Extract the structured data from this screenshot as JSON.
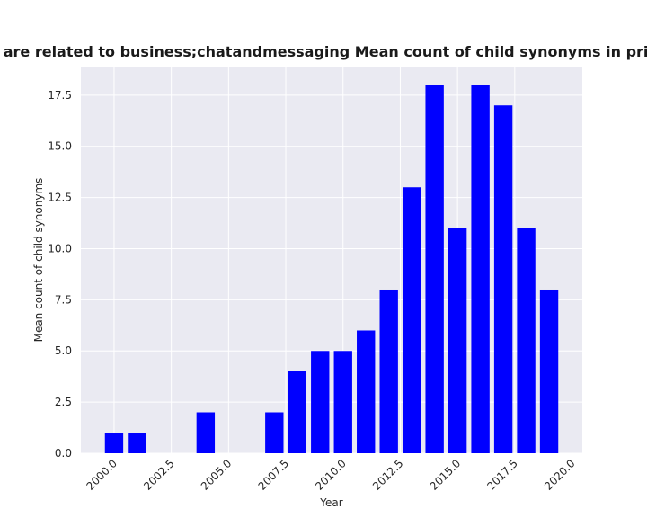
{
  "chart_data": {
    "type": "bar",
    "title": "gories are related to business;chatandmessaging Mean count of child synonyms in privacy pol",
    "xlabel": "Year",
    "ylabel": "Mean count of child synonyms",
    "x": [
      2000,
      2001,
      2004,
      2007,
      2008,
      2009,
      2010,
      2011,
      2012,
      2013,
      2014,
      2015,
      2016,
      2017,
      2018,
      2019
    ],
    "values": [
      1,
      1,
      2,
      2,
      4,
      5,
      5,
      6,
      8,
      13,
      18,
      11,
      18,
      17,
      11,
      8
    ],
    "xlim": [
      1998.55,
      2020.45
    ],
    "ylim": [
      0,
      18.9
    ],
    "xticks": [
      2000.0,
      2002.5,
      2005.0,
      2007.5,
      2010.0,
      2012.5,
      2015.0,
      2017.5,
      2020.0
    ],
    "xtick_labels": [
      "2000.0",
      "2002.5",
      "2005.0",
      "2007.5",
      "2010.0",
      "2012.5",
      "2015.0",
      "2017.5",
      "2020.0"
    ],
    "yticks": [
      0,
      2.5,
      5,
      7.5,
      10,
      12.5,
      15,
      17.5
    ],
    "ytick_labels": [
      "0.0",
      "2.5",
      "5.0",
      "7.5",
      "10.0",
      "12.5",
      "15.0",
      "17.5"
    ],
    "grid": true,
    "legend": "none",
    "colors": {
      "bar": "#0000ff",
      "plot_background": "#eaeaf2",
      "grid": "#ffffff"
    }
  }
}
